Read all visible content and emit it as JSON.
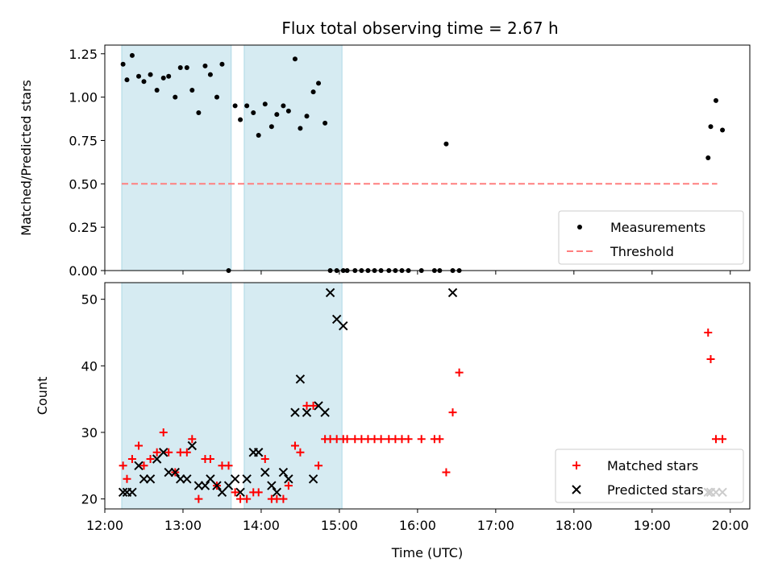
{
  "title": "Flux total observing time = 2.67 h",
  "colors": {
    "shade": "#add8e6",
    "measurement": "#000000",
    "threshold": "#ff7f7f",
    "matched": "#ff0000",
    "predicted": "#000000"
  },
  "chart_data": [
    {
      "type": "scatter",
      "ylabel": "Matched/Predicted stars",
      "xlim": [
        "12:00",
        "20:15"
      ],
      "ylim": [
        0,
        1.3
      ],
      "yticks": [
        "0.00",
        "0.25",
        "0.50",
        "0.75",
        "1.00",
        "1.25"
      ],
      "shaded_intervals": [
        [
          "12:13",
          "13:37"
        ],
        [
          "13:47",
          "15:02"
        ]
      ],
      "legend": {
        "position": "lower-right",
        "entries": [
          "Measurements",
          "Threshold"
        ]
      },
      "threshold": {
        "name": "Threshold",
        "y": 0.5,
        "x_range": [
          "12:13",
          "19:50"
        ]
      },
      "series": [
        {
          "name": "Measurements",
          "x": [
            "12:14",
            "12:17",
            "12:21",
            "12:26",
            "12:30",
            "12:35",
            "12:40",
            "12:45",
            "12:49",
            "12:54",
            "12:58",
            "13:03",
            "13:07",
            "13:12",
            "13:17",
            "13:21",
            "13:26",
            "13:30",
            "13:35",
            "13:40",
            "13:44",
            "13:49",
            "13:54",
            "13:58",
            "14:03",
            "14:08",
            "14:12",
            "14:17",
            "14:21",
            "14:26",
            "14:30",
            "14:35",
            "14:40",
            "14:44",
            "14:49",
            "14:53",
            "14:58",
            "15:03",
            "15:06",
            "15:12",
            "15:17",
            "15:22",
            "15:27",
            "15:32",
            "15:38",
            "15:43",
            "15:48",
            "15:53",
            "16:03",
            "16:13",
            "16:17",
            "16:22",
            "16:27",
            "16:32",
            "19:43",
            "19:45",
            "19:49",
            "19:54"
          ],
          "y": [
            1.19,
            1.1,
            1.24,
            1.12,
            1.09,
            1.13,
            1.04,
            1.11,
            1.12,
            1.0,
            1.17,
            1.17,
            1.04,
            0.91,
            1.18,
            1.13,
            1.0,
            1.19,
            0.0,
            0.95,
            0.87,
            0.95,
            0.91,
            0.78,
            0.96,
            0.83,
            0.9,
            0.95,
            0.92,
            1.22,
            0.82,
            0.89,
            1.03,
            1.08,
            0.85,
            0.0,
            0.0,
            0.0,
            0.0,
            0.0,
            0.0,
            0.0,
            0.0,
            0.0,
            0.0,
            0.0,
            0.0,
            0.0,
            0.0,
            0.0,
            0.0,
            0.73,
            0.0,
            0.0,
            0.65,
            0.83,
            0.98,
            0.81
          ]
        }
      ]
    },
    {
      "type": "scatter",
      "ylabel": "Count",
      "xlabel": "Time (UTC)",
      "xlim": [
        "12:00",
        "20:15"
      ],
      "ylim": [
        18.5,
        52.5
      ],
      "xticks": [
        "12:00",
        "13:00",
        "14:00",
        "15:00",
        "16:00",
        "17:00",
        "18:00",
        "19:00",
        "20:00"
      ],
      "yticks": [
        "20",
        "30",
        "40",
        "50"
      ],
      "shaded_intervals": [
        [
          "12:13",
          "13:37"
        ],
        [
          "13:47",
          "15:02"
        ]
      ],
      "legend": {
        "position": "lower-right",
        "entries": [
          "Matched stars",
          "Predicted stars"
        ]
      },
      "series": [
        {
          "name": "Matched stars",
          "x": [
            "12:14",
            "12:17",
            "12:21",
            "12:26",
            "12:30",
            "12:35",
            "12:40",
            "12:45",
            "12:49",
            "12:54",
            "12:58",
            "13:03",
            "13:07",
            "13:12",
            "13:17",
            "13:21",
            "13:26",
            "13:30",
            "13:35",
            "13:40",
            "13:44",
            "13:49",
            "13:54",
            "13:58",
            "14:03",
            "14:08",
            "14:12",
            "14:17",
            "14:21",
            "14:26",
            "14:30",
            "14:35",
            "14:40",
            "14:44",
            "14:49",
            "14:53",
            "14:58",
            "15:03",
            "15:06",
            "15:12",
            "15:17",
            "15:22",
            "15:27",
            "15:32",
            "15:38",
            "15:43",
            "15:48",
            "15:53",
            "16:03",
            "16:13",
            "16:17",
            "16:22",
            "16:27",
            "16:32",
            "19:43",
            "19:45",
            "19:49",
            "19:54"
          ],
          "y": [
            25,
            23,
            26,
            28,
            25,
            26,
            27,
            30,
            27,
            24,
            27,
            27,
            29,
            20,
            26,
            26,
            22,
            25,
            25,
            21,
            20,
            20,
            21,
            21,
            26,
            20,
            20,
            20,
            22,
            28,
            27,
            34,
            34,
            25,
            29,
            29,
            29,
            29,
            29,
            29,
            29,
            29,
            29,
            29,
            29,
            29,
            29,
            29,
            29,
            29,
            29,
            24,
            33,
            39,
            45,
            41,
            29,
            29
          ]
        },
        {
          "name": "Predicted stars",
          "x": [
            "12:14",
            "12:17",
            "12:21",
            "12:26",
            "12:30",
            "12:35",
            "12:40",
            "12:45",
            "12:49",
            "12:54",
            "12:58",
            "13:03",
            "13:07",
            "13:12",
            "13:17",
            "13:21",
            "13:26",
            "13:30",
            "13:35",
            "13:40",
            "13:44",
            "13:49",
            "13:54",
            "13:58",
            "14:03",
            "14:08",
            "14:12",
            "14:17",
            "14:21",
            "14:26",
            "14:30",
            "14:35",
            "14:40",
            "14:44",
            "14:49",
            "14:53",
            "14:58",
            "15:03",
            "16:27",
            "19:43",
            "19:45",
            "19:49",
            "19:54"
          ],
          "y": [
            21,
            21,
            21,
            25,
            23,
            23,
            26,
            27,
            24,
            24,
            23,
            23,
            28,
            22,
            22,
            23,
            22,
            21,
            22,
            23,
            21,
            23,
            27,
            27,
            24,
            22,
            21,
            24,
            23,
            33,
            38,
            33,
            23,
            34,
            33,
            51,
            47,
            46,
            51,
            21,
            21,
            21,
            21
          ]
        }
      ]
    }
  ]
}
